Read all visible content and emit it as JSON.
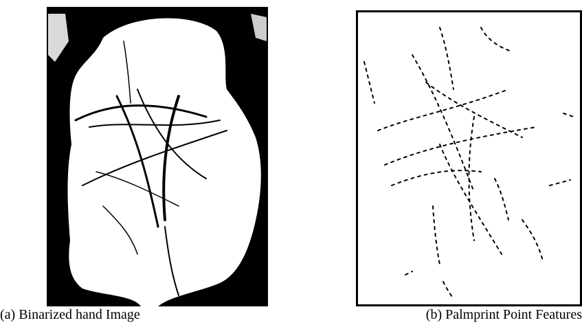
{
  "figures": [
    {
      "caption": "(a) Binarized hand Image"
    },
    {
      "caption": "(b) Palmprint Point Features"
    }
  ]
}
